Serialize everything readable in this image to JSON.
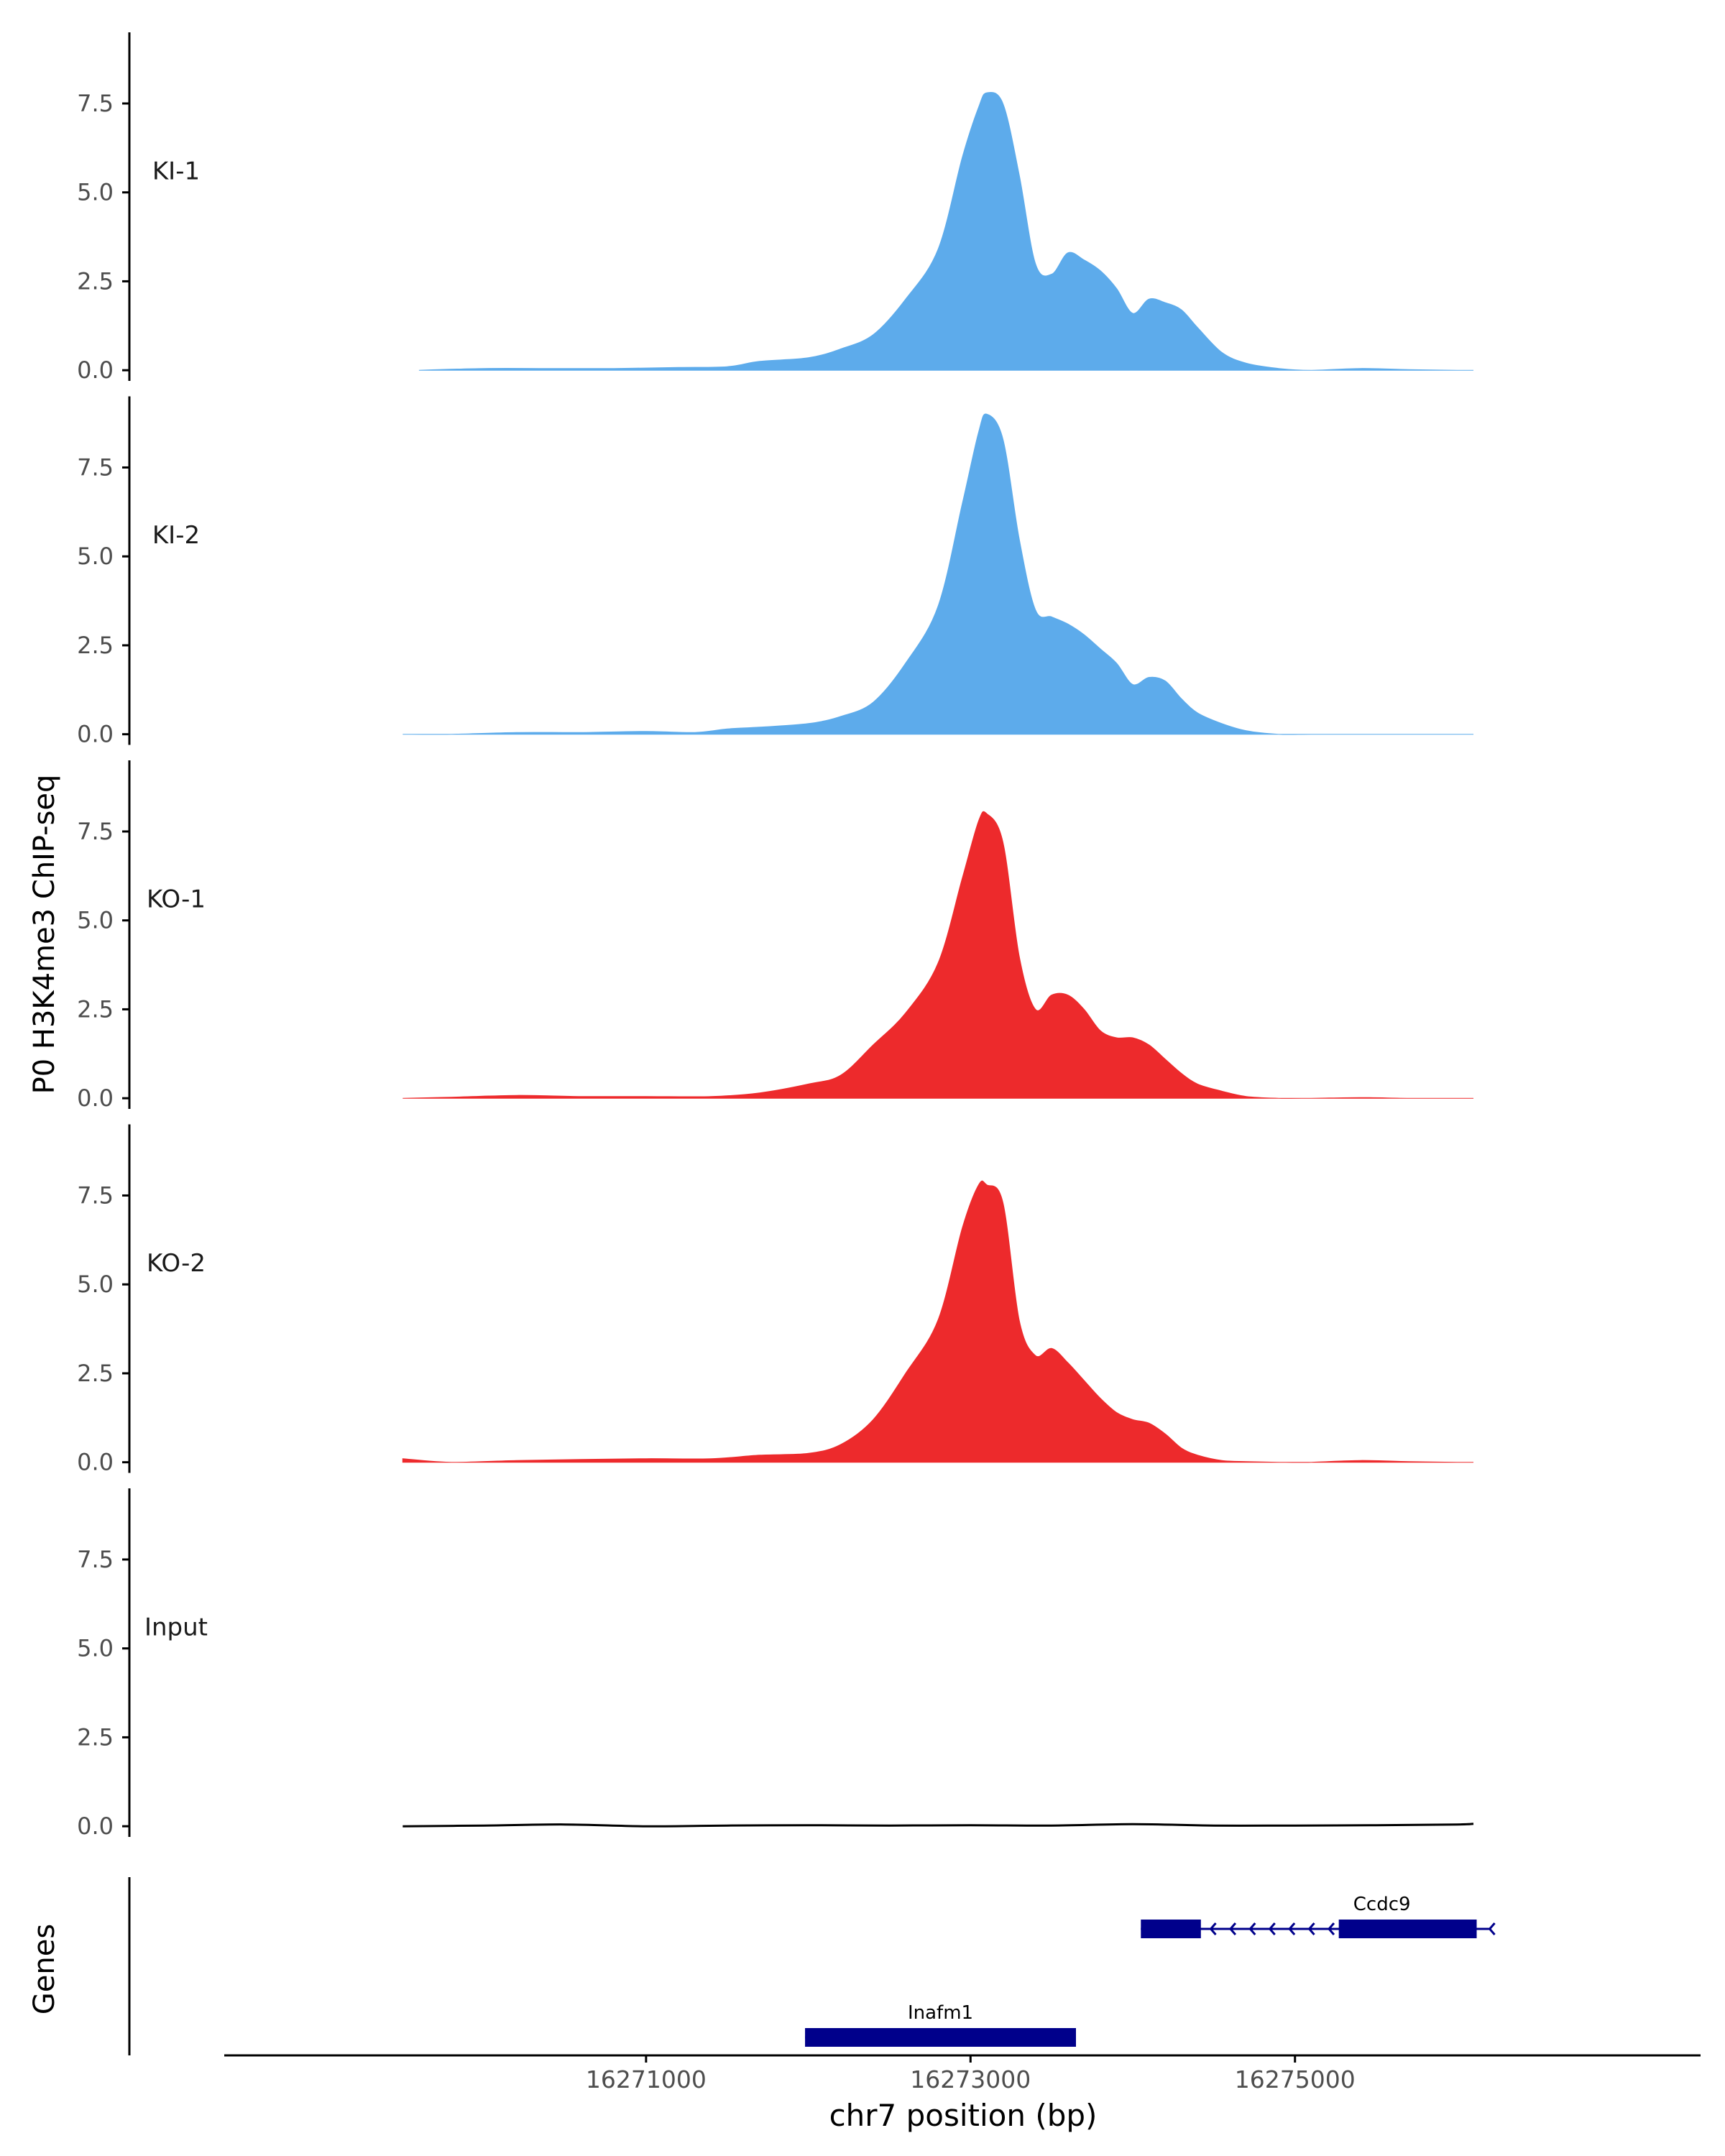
{
  "chart_data": {
    "type": "area",
    "ylabel": "P0 H3K4me3 ChIP-seq",
    "xlabel": "chr7 position (bp)",
    "genes_label": "Genes",
    "xlim": [
      16268400,
      16277500
    ],
    "ylim": [
      -0.3,
      9.5
    ],
    "y_ticks": [
      0.0,
      2.5,
      5.0,
      7.5
    ],
    "y_tick_labels": [
      "0.0",
      "2.5",
      "5.0",
      "7.5"
    ],
    "x_ticks": [
      16271000,
      16273000,
      16275000
    ],
    "x_tick_labels": [
      "16271000",
      "16273000",
      "16275000"
    ],
    "colors": {
      "KI": "#5dabeb",
      "KO": "#ed2a2c",
      "Input": "#000000",
      "gene": "#00008b",
      "axis": "#000000"
    },
    "tracks": [
      {
        "label": "KI-1",
        "color": "#5dabeb",
        "x": [
          16269600,
          16270000,
          16270400,
          16270800,
          16271200,
          16271500,
          16271700,
          16272000,
          16272200,
          16272400,
          16272600,
          16272800,
          16272950,
          16273050,
          16273100,
          16273200,
          16273300,
          16273400,
          16273500,
          16273600,
          16273700,
          16273800,
          16273900,
          16274000,
          16274100,
          16274200,
          16274300,
          16274400,
          16274550,
          16274700,
          16274900,
          16275100,
          16275400,
          16275700,
          16276000,
          16276100
        ],
        "y": [
          0.0,
          0.05,
          0.05,
          0.05,
          0.08,
          0.1,
          0.25,
          0.35,
          0.6,
          1.0,
          2.0,
          3.4,
          6.0,
          7.4,
          7.8,
          7.5,
          5.5,
          3.0,
          2.7,
          3.3,
          3.1,
          2.8,
          2.3,
          1.6,
          2.0,
          1.9,
          1.7,
          1.2,
          0.5,
          0.2,
          0.05,
          0.0,
          0.05,
          0.02,
          0.0,
          0.0
        ]
      },
      {
        "label": "KI-2",
        "color": "#5dabeb",
        "x": [
          16269500,
          16269800,
          16270200,
          16270600,
          16271000,
          16271300,
          16271500,
          16271700,
          16272000,
          16272200,
          16272400,
          16272600,
          16272800,
          16272950,
          16273050,
          16273100,
          16273200,
          16273300,
          16273400,
          16273500,
          16273600,
          16273700,
          16273800,
          16273900,
          16274000,
          16274100,
          16274200,
          16274300,
          16274400,
          16274550,
          16274700,
          16274900,
          16275100,
          16275400,
          16275700,
          16276000,
          16276100
        ],
        "y": [
          0.0,
          0.0,
          0.05,
          0.05,
          0.08,
          0.05,
          0.15,
          0.2,
          0.3,
          0.5,
          0.9,
          2.0,
          3.6,
          6.5,
          8.5,
          9.0,
          8.3,
          5.5,
          3.5,
          3.3,
          3.1,
          2.8,
          2.4,
          2.0,
          1.4,
          1.6,
          1.5,
          1.0,
          0.6,
          0.3,
          0.1,
          0.0,
          0.0,
          0.0,
          0.0,
          0.0,
          0.0
        ]
      },
      {
        "label": "KO-1",
        "color": "#ed2a2c",
        "x": [
          16269500,
          16269800,
          16270200,
          16270600,
          16271000,
          16271400,
          16271700,
          16272000,
          16272200,
          16272400,
          16272600,
          16272800,
          16272950,
          16273050,
          16273100,
          16273200,
          16273300,
          16273400,
          16273500,
          16273600,
          16273700,
          16273800,
          16273900,
          16274000,
          16274100,
          16274200,
          16274300,
          16274400,
          16274550,
          16274700,
          16274900,
          16275100,
          16275400,
          16275700,
          16276000,
          16276100
        ],
        "y": [
          0.0,
          0.03,
          0.08,
          0.05,
          0.05,
          0.05,
          0.15,
          0.4,
          0.65,
          1.5,
          2.4,
          3.8,
          6.2,
          7.8,
          8.0,
          7.2,
          4.0,
          2.5,
          2.9,
          2.9,
          2.5,
          1.9,
          1.7,
          1.7,
          1.5,
          1.1,
          0.7,
          0.4,
          0.2,
          0.05,
          0.0,
          0.0,
          0.02,
          0.0,
          0.0,
          0.0
        ]
      },
      {
        "label": "KO-2",
        "color": "#ed2a2c",
        "x": [
          16269500,
          16269800,
          16270200,
          16270600,
          16271000,
          16271400,
          16271700,
          16272000,
          16272200,
          16272400,
          16272600,
          16272800,
          16272950,
          16273050,
          16273100,
          16273200,
          16273300,
          16273400,
          16273500,
          16273600,
          16273700,
          16273800,
          16273900,
          16274000,
          16274100,
          16274200,
          16274300,
          16274400,
          16274550,
          16274700,
          16274900,
          16275100,
          16275400,
          16275700,
          16276000,
          16276100
        ],
        "y": [
          0.1,
          0.0,
          0.05,
          0.08,
          0.1,
          0.1,
          0.2,
          0.25,
          0.5,
          1.2,
          2.5,
          4.0,
          6.6,
          7.8,
          7.8,
          7.3,
          4.0,
          3.0,
          3.2,
          2.8,
          2.3,
          1.8,
          1.4,
          1.2,
          1.1,
          0.8,
          0.4,
          0.2,
          0.05,
          0.02,
          0.0,
          0.0,
          0.05,
          0.02,
          0.0,
          0.0
        ]
      },
      {
        "label": "Input",
        "color": "#000000",
        "x": [
          16269500,
          16270000,
          16270500,
          16271000,
          16271500,
          16272000,
          16272500,
          16273000,
          16273500,
          16274000,
          16274500,
          16275000,
          16275500,
          16276000,
          16276100
        ],
        "y": [
          0.0,
          0.02,
          0.05,
          0.0,
          0.02,
          0.03,
          0.02,
          0.03,
          0.02,
          0.06,
          0.02,
          0.02,
          0.03,
          0.05,
          0.07
        ]
      }
    ],
    "genes": [
      {
        "name": "Inafm1",
        "start": 16271980,
        "end": 16273650,
        "strand": "+",
        "exons": [
          [
            16271980,
            16273650
          ]
        ],
        "row": 1
      },
      {
        "name": "Ccdc9",
        "start": 16274050,
        "end": 16276200,
        "strand": "-",
        "exons": [
          [
            16274050,
            16274420
          ],
          [
            16275270,
            16276120
          ]
        ],
        "row": 0
      }
    ]
  }
}
